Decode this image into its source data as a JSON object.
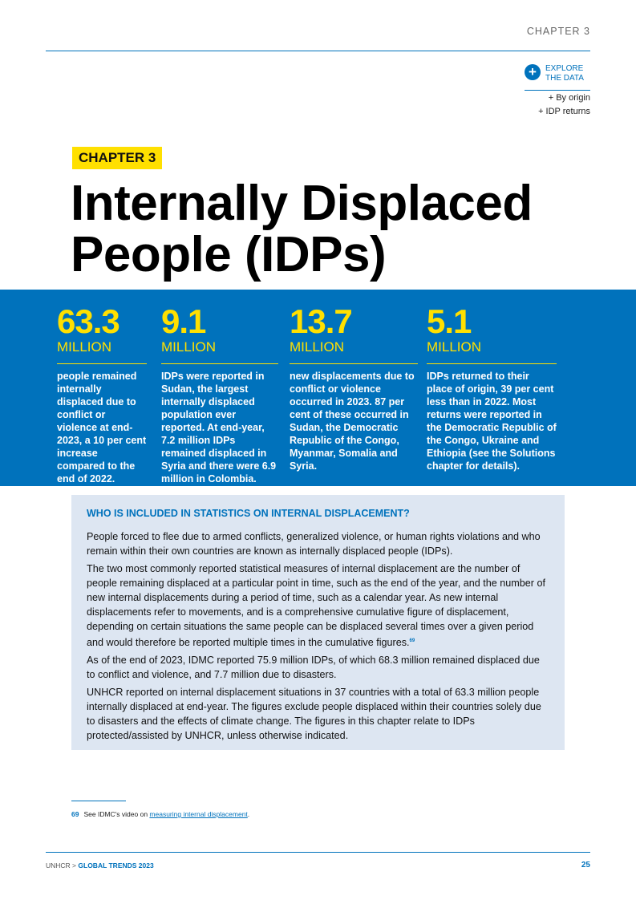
{
  "header": {
    "chapter_label": "CHAPTER 3",
    "explore": {
      "icon": "plus-circle-icon",
      "line1": "EXPLORE",
      "line2": "THE DATA",
      "links": [
        "+ By origin",
        "+ IDP returns"
      ]
    }
  },
  "title_block": {
    "tag": "CHAPTER 3",
    "title_line1": "Internally Displaced",
    "title_line2": "People (IDPs)"
  },
  "stats": [
    {
      "number": "63.3",
      "unit": "MILLION",
      "description": "people remained internally displaced due to conflict or violence at end-2023, a 10 per cent increase compared to the end of 2022."
    },
    {
      "number": "9.1",
      "unit": "MILLION",
      "description": "IDPs were reported in Sudan, the largest internally displaced population ever reported. At end-year, 7.2 million IDPs remained displaced in Syria and there were 6.9 million in Colombia."
    },
    {
      "number": "13.7",
      "unit": "MILLION",
      "description": "new displacements due to conflict or violence occurred in 2023. 87 per cent of these occurred in Sudan, the Democratic Republic of the Congo, Myanmar, Somalia and Syria."
    },
    {
      "number": "5.1",
      "unit": "MILLION",
      "description": "IDPs returned to their place of origin, 39 per cent less than in 2022. Most returns were reported in the Democratic Republic of the Congo, Ukraine and Ethiopia (see the Solutions chapter for details)."
    }
  ],
  "info_box": {
    "title": "WHO IS INCLUDED IN STATISTICS ON INTERNAL DISPLACEMENT?",
    "para1": "People forced to flee due to armed conflicts, generalized violence, or human rights violations and who remain within their own countries are known as internally displaced people (IDPs).",
    "para2": "The two most commonly reported statistical measures of internal displacement are the number of people remaining displaced at a particular point in time, such as the end of the year, and the number of new internal displacements during a period of time, such as a calendar year. As new internal displacements refer to movements, and is a comprehensive cumulative figure of displacement, depending on certain situations the same people can be displaced several times over a given period and would therefore be reported multiple times in the cumulative figures.",
    "para2_ref": "69",
    "para3": "As of the end of 2023, IDMC reported 75.9 million IDPs, of which 68.3 million remained displaced due to conflict and violence, and 7.7 million due to disasters.",
    "para4": "UNHCR reported on internal displacement situations in 37 countries with a total of 63.3 million people internally displaced at end-year. The figures exclude people displaced within their countries solely due to disasters and the effects of climate change. The figures in this chapter relate to IDPs protected/assisted by UNHCR, unless otherwise indicated."
  },
  "footnote": {
    "number": "69",
    "text_before": "See IDMC's video on ",
    "link_text": "measuring internal displacement",
    "text_after": "."
  },
  "footer": {
    "org": "UNHCR > ",
    "report": "GLOBAL TRENDS 2023",
    "page_number": "25"
  },
  "colors": {
    "brand_blue": "#0072bc",
    "accent_yellow": "#ffe000",
    "box_bg": "#dde6f2"
  }
}
